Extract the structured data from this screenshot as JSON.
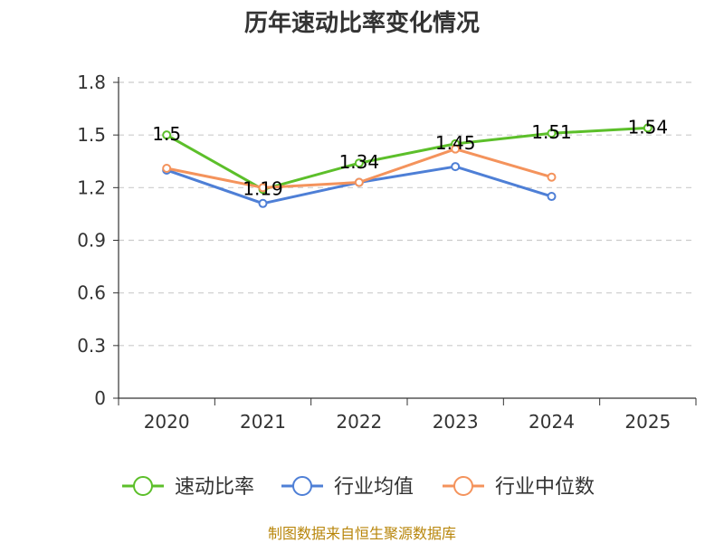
{
  "chart_data": {
    "type": "line",
    "title": "历年速动比率变化情况",
    "categories": [
      "2020",
      "2021",
      "2022",
      "2023",
      "2024",
      "2025"
    ],
    "ylim": [
      0,
      1.8
    ],
    "yticks": [
      "0",
      "0.3",
      "0.6",
      "0.9",
      "1.2",
      "1.5",
      "1.8"
    ],
    "grid": true,
    "legend_position": "bottom",
    "series": [
      {
        "name": "速动比率",
        "color": "#5cbf2a",
        "values": [
          1.5,
          1.19,
          1.34,
          1.45,
          1.51,
          1.54
        ],
        "labels": [
          "1.5",
          "1.19",
          "1.34",
          "1.45",
          "1.51",
          "1.54"
        ]
      },
      {
        "name": "行业均值",
        "color": "#4e7fd6",
        "values": [
          1.3,
          1.11,
          1.23,
          1.32,
          1.15,
          null
        ]
      },
      {
        "name": "行业中位数",
        "color": "#f4935c",
        "values": [
          1.31,
          1.2,
          1.23,
          1.42,
          1.26,
          null
        ]
      }
    ],
    "source": "制图数据来自恒生聚源数据库"
  }
}
